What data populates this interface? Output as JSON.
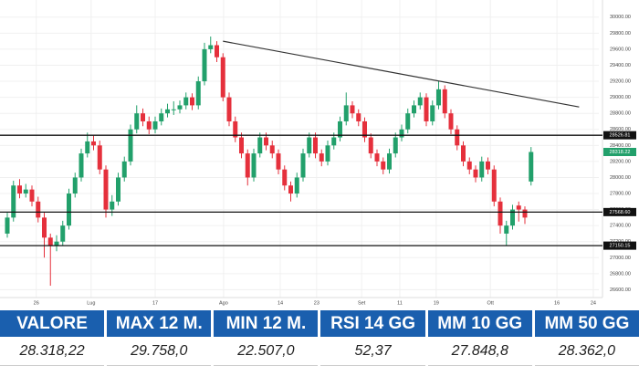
{
  "chart_data": {
    "type": "candlestick",
    "open": [
      27300,
      27500,
      27900,
      27800,
      27850,
      27700,
      27500,
      27250,
      27150,
      27200,
      27400,
      27800,
      28000,
      28300,
      28450,
      28400,
      28100,
      27600,
      27700,
      28000,
      28200,
      28600,
      28800,
      28700,
      28600,
      28700,
      28800,
      28850,
      28850,
      28900,
      29000,
      28900,
      29200,
      29600,
      29650,
      29500,
      29000,
      28700,
      28500,
      28300,
      28000,
      28300,
      28500,
      28400,
      28300,
      28100,
      27900,
      27800,
      28000,
      28300,
      28500,
      28300,
      28200,
      28400,
      28500,
      28700,
      28900,
      28800,
      28700,
      28500,
      28300,
      28200,
      28100,
      28300,
      28500,
      28600,
      28800,
      28900,
      29000,
      28700,
      28900,
      29100,
      28800,
      28600,
      28400,
      28200,
      28100,
      28000,
      28200,
      28100,
      27700,
      27300,
      27400,
      27650,
      27600,
      27950
    ],
    "high": [
      27560,
      27960,
      27980,
      27920,
      27900,
      27760,
      27560,
      27300,
      27280,
      27460,
      27860,
      28060,
      28360,
      28560,
      28520,
      28460,
      28150,
      27780,
      28060,
      28260,
      28660,
      28900,
      28860,
      28760,
      28760,
      28860,
      28920,
      28950,
      28960,
      29060,
      29050,
      29260,
      29680,
      29758,
      29700,
      29550,
      29060,
      28760,
      28560,
      28350,
      28360,
      28560,
      28560,
      28460,
      28350,
      28150,
      27950,
      28060,
      28360,
      28560,
      28560,
      28350,
      28460,
      28560,
      28760,
      29060,
      28950,
      28850,
      28750,
      28550,
      28350,
      28250,
      28360,
      28560,
      28660,
      28860,
      28960,
      29060,
      29050,
      28960,
      29200,
      29150,
      28850,
      28650,
      28450,
      28250,
      28150,
      28260,
      28250,
      28150,
      27750,
      27460,
      27660,
      27700,
      27640,
      28380
    ],
    "low": [
      27250,
      27450,
      27740,
      27750,
      27640,
      27440,
      27000,
      26650,
      27080,
      27150,
      27350,
      27750,
      27950,
      28250,
      28340,
      28040,
      27500,
      27520,
      27650,
      27950,
      28150,
      28550,
      28640,
      28540,
      28550,
      28650,
      28750,
      28780,
      28800,
      28850,
      28840,
      28850,
      29150,
      29550,
      29440,
      28950,
      28640,
      28440,
      28240,
      27900,
      27950,
      28250,
      28340,
      28240,
      28040,
      27840,
      27700,
      27750,
      27950,
      28250,
      28240,
      28140,
      28150,
      28350,
      28450,
      28650,
      28740,
      28640,
      28440,
      28240,
      28140,
      28040,
      28050,
      28250,
      28450,
      28550,
      28750,
      28850,
      28640,
      28650,
      28850,
      28740,
      28540,
      28340,
      28140,
      28040,
      27940,
      27950,
      28040,
      27640,
      27300,
      27150,
      27350,
      27450,
      27420,
      27900
    ],
    "close": [
      27500,
      27900,
      27800,
      27850,
      27700,
      27500,
      27250,
      27150,
      27200,
      27400,
      27800,
      28000,
      28300,
      28450,
      28400,
      28100,
      27600,
      27700,
      28000,
      28200,
      28600,
      28800,
      28700,
      28600,
      28700,
      28800,
      28850,
      28850,
      28900,
      29000,
      28900,
      29200,
      29600,
      29650,
      29500,
      29000,
      28700,
      28500,
      28300,
      28000,
      28300,
      28500,
      28400,
      28300,
      28100,
      27900,
      27800,
      28000,
      28300,
      28500,
      28300,
      28200,
      28400,
      28500,
      28700,
      28900,
      28800,
      28700,
      28500,
      28300,
      28200,
      28100,
      28300,
      28500,
      28600,
      28800,
      28900,
      29000,
      28700,
      28900,
      29100,
      28800,
      28600,
      28400,
      28200,
      28100,
      28000,
      28200,
      28100,
      27700,
      27400,
      27400,
      27600,
      27600,
      27500,
      28318.22
    ],
    "up_color": "#22a06b",
    "down_color": "#e5303c",
    "xlim": [
      -1,
      96
    ],
    "xticks": [
      {
        "value": 4.7,
        "label": "26"
      },
      {
        "value": 13.6,
        "label": "Lug"
      },
      {
        "value": 24,
        "label": "17"
      },
      {
        "value": 35.1,
        "label": "Ago"
      },
      {
        "value": 44.3,
        "label": "14"
      },
      {
        "value": 50.2,
        "label": "23"
      },
      {
        "value": 57.5,
        "label": "Set"
      },
      {
        "value": 63.7,
        "label": "11"
      },
      {
        "value": 69.6,
        "label": "19"
      },
      {
        "value": 78.4,
        "label": "Ott"
      },
      {
        "value": 89.2,
        "label": "16"
      },
      {
        "value": 95.1,
        "label": "24"
      }
    ],
    "ylim": [
      26400,
      30100
    ],
    "yticks": [
      {
        "value": 26600,
        "label": "26600.00"
      },
      {
        "value": 26800,
        "label": "26800.00"
      },
      {
        "value": 27000,
        "label": "27000.00"
      },
      {
        "value": 27200,
        "label": "27200.00"
      },
      {
        "value": 27400,
        "label": "27400.00"
      },
      {
        "value": 27600,
        "label": "27600.00"
      },
      {
        "value": 27800,
        "label": "27800.00"
      },
      {
        "value": 28000,
        "label": "28000.00"
      },
      {
        "value": 28200,
        "label": "28200.00"
      },
      {
        "value": 28400,
        "label": "28400.00"
      },
      {
        "value": 28600,
        "label": "28600.00"
      },
      {
        "value": 28800,
        "label": "28800.00"
      },
      {
        "value": 29000,
        "label": "29000.00"
      },
      {
        "value": 29200,
        "label": "29200.00"
      },
      {
        "value": 29400,
        "label": "29400.00"
      },
      {
        "value": 29600,
        "label": "29600.00"
      },
      {
        "value": 29800,
        "label": "29800.00"
      },
      {
        "value": 30000,
        "label": "30000.00"
      }
    ],
    "grid": true,
    "levels": [
      {
        "value": 28526.81,
        "line": true,
        "color": "#111111"
      },
      {
        "value": 28318.22,
        "line": false,
        "color": "#22a06b"
      },
      {
        "value": 27568.6,
        "label": "27568.60",
        "line": true,
        "color": "#111111"
      },
      {
        "value": 27150.15,
        "line": true,
        "color": "#111111"
      }
    ],
    "trendline": {
      "start": [
        35,
        29700
      ],
      "end": [
        92.8,
        28880
      ],
      "color": "#333333"
    }
  },
  "table": {
    "headers": [
      "VALORE",
      "MAX 12 M.",
      "MIN 12 M.",
      "RSI 14 GG",
      "MM 10 GG",
      "MM 50 GG"
    ],
    "values": [
      "28.318,22",
      "29.758,0",
      "22.507,0",
      "52,37",
      "27.848,8",
      "28.362,0"
    ]
  }
}
